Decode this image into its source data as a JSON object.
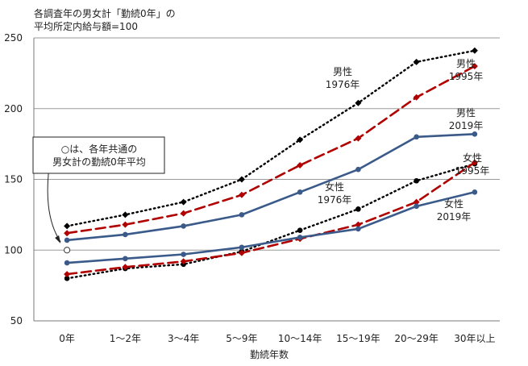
{
  "chart_data": {
    "type": "line",
    "title_lines": [
      "各調査年の男女計「勤続0年」の",
      "平均所定内給与額=100"
    ],
    "xlabel": "勤続年数",
    "ylabel": "",
    "categories": [
      "0年",
      "1〜2年",
      "3〜4年",
      "5〜9年",
      "10〜14年",
      "15〜19年",
      "20〜29年",
      "30年以上"
    ],
    "yticks": [
      50,
      100,
      150,
      200,
      250
    ],
    "ylim": [
      50,
      250
    ],
    "grid": true,
    "baseline_marker": {
      "category": "0年",
      "value": 100
    },
    "baseline_note_lines": [
      "○は、各年共通の",
      "男女計の勤続0年平均"
    ],
    "series": [
      {
        "label_lines": [
          "男性",
          "1976年"
        ],
        "style": "dotted",
        "marker": "diamond",
        "color": "#000000",
        "values": [
          117,
          125,
          134,
          150,
          178,
          204,
          233,
          241
        ]
      },
      {
        "label_lines": [
          "男性",
          "1995年"
        ],
        "style": "dashed",
        "marker": "diamond",
        "color": "#b00000",
        "values": [
          112,
          118,
          126,
          139,
          160,
          179,
          208,
          230
        ]
      },
      {
        "label_lines": [
          "男性",
          "2019年"
        ],
        "style": "solid",
        "marker": "circle",
        "color": "#3a5a8a",
        "values": [
          107,
          111,
          117,
          125,
          141,
          157,
          180,
          182
        ]
      },
      {
        "label_lines": [
          "女性",
          "1976年"
        ],
        "style": "dotted",
        "marker": "circle",
        "color": "#000000",
        "values": [
          80,
          87,
          90,
          99,
          114,
          129,
          149,
          161
        ]
      },
      {
        "label_lines": [
          "女性",
          "1995年"
        ],
        "style": "dashed",
        "marker": "diamond",
        "color": "#b00000",
        "values": [
          83,
          88,
          92,
          98,
          108,
          118,
          134,
          162
        ]
      },
      {
        "label_lines": [
          "女性",
          "2019年"
        ],
        "style": "solid",
        "marker": "circle",
        "color": "#3a5a8a",
        "values": [
          91,
          94,
          97,
          102,
          109,
          115,
          131,
          141
        ]
      }
    ]
  }
}
